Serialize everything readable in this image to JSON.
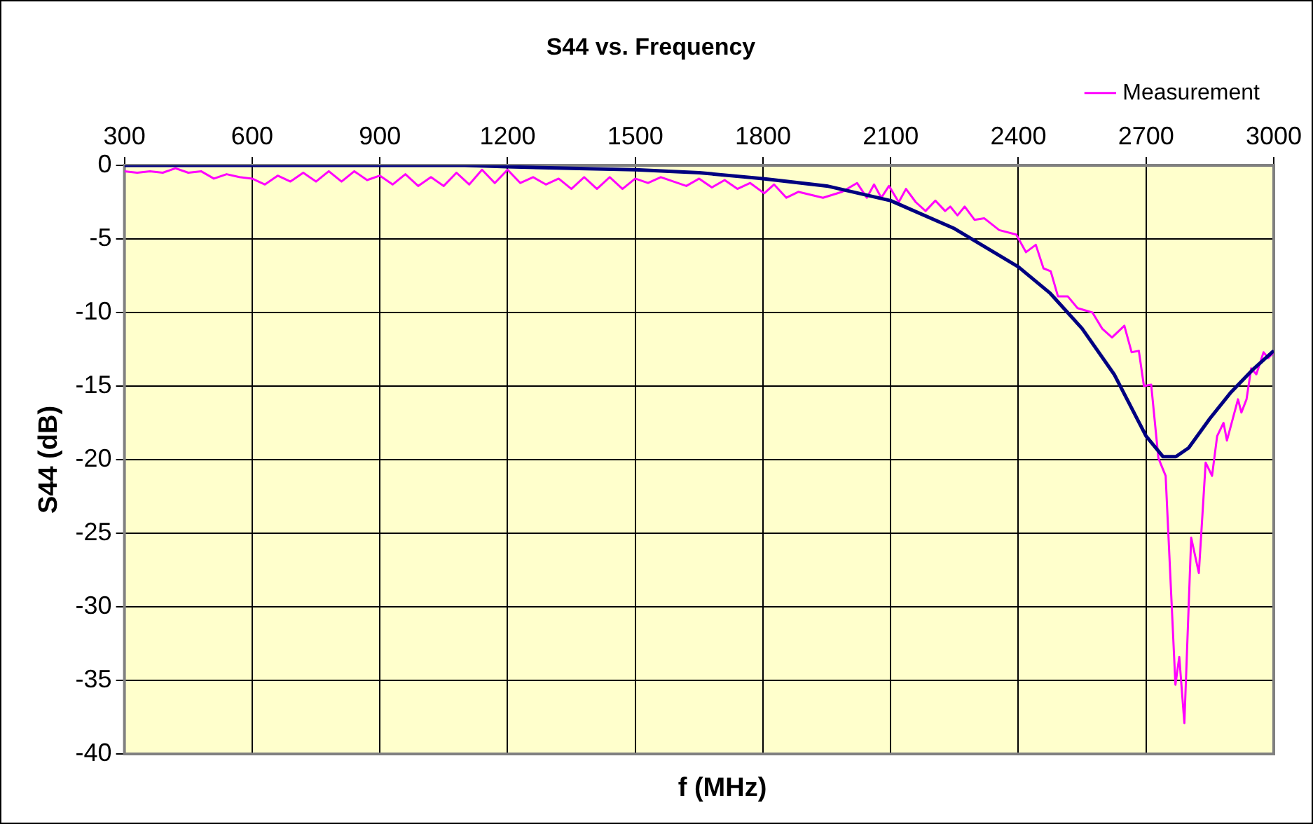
{
  "chart_data": {
    "type": "line",
    "title": "S44 vs. Frequency",
    "xlabel": "f (MHz)",
    "ylabel": "S44 (dB)",
    "xlim": [
      300,
      3000
    ],
    "xticks": [
      300,
      600,
      900,
      1200,
      1500,
      1800,
      2100,
      2400,
      2700,
      3000
    ],
    "ylim": [
      -40,
      0
    ],
    "yticks": [
      -40,
      -35,
      -30,
      -25,
      -20,
      -15,
      -10,
      -5,
      0
    ],
    "grid": true,
    "legend": "top right",
    "marker": "none",
    "line_style": "solid",
    "series": [
      {
        "color": "#000080",
        "x": [
          300,
          600,
          900,
          1100,
          1200,
          1350,
          1500,
          1650,
          1800,
          1950,
          2100,
          2250,
          2400,
          2475,
          2550,
          2625,
          2700,
          2740,
          2770,
          2800,
          2850,
          2900,
          2950,
          3000
        ],
        "values": [
          0,
          0,
          0,
          0,
          -0.1,
          -0.2,
          -0.3,
          -0.5,
          -0.9,
          -1.4,
          -2.4,
          -4.3,
          -6.9,
          -8.7,
          -11.1,
          -14.2,
          -18.4,
          -19.8,
          -19.8,
          -19.2,
          -17.2,
          -15.4,
          -13.9,
          -12.6
        ]
      },
      {
        "name": "Measurement",
        "color": "#ff00ff",
        "x": [
          300,
          330,
          360,
          390,
          420,
          450,
          480,
          510,
          540,
          570,
          600,
          630,
          660,
          690,
          720,
          750,
          780,
          810,
          840,
          870,
          900,
          930,
          960,
          990,
          1020,
          1050,
          1080,
          1110,
          1140,
          1170,
          1200,
          1230,
          1260,
          1290,
          1320,
          1350,
          1380,
          1410,
          1440,
          1470,
          1500,
          1530,
          1560,
          1590,
          1620,
          1650,
          1680,
          1710,
          1740,
          1770,
          1803,
          1826,
          1855,
          1883,
          1941,
          1986,
          2021,
          2044,
          2061,
          2078,
          2096,
          2119,
          2136,
          2159,
          2182,
          2205,
          2228,
          2240,
          2257,
          2274,
          2297,
          2320,
          2355,
          2395,
          2418,
          2441,
          2459,
          2476,
          2493,
          2516,
          2539,
          2574,
          2597,
          2620,
          2649,
          2666,
          2683,
          2695,
          2712,
          2729,
          2746,
          2769,
          2778,
          2790,
          2806,
          2824,
          2840,
          2855,
          2867,
          2882,
          2890,
          2916,
          2924,
          2936,
          2947,
          2959,
          2976,
          2987,
          3000
        ],
        "values": [
          -0.4,
          -0.5,
          -0.4,
          -0.5,
          -0.2,
          -0.5,
          -0.4,
          -0.9,
          -0.6,
          -0.8,
          -0.9,
          -1.3,
          -0.7,
          -1.1,
          -0.5,
          -1.1,
          -0.4,
          -1.1,
          -0.4,
          -1.0,
          -0.7,
          -1.3,
          -0.6,
          -1.4,
          -0.8,
          -1.4,
          -0.5,
          -1.3,
          -0.3,
          -1.2,
          -0.3,
          -1.2,
          -0.8,
          -1.3,
          -0.9,
          -1.6,
          -0.8,
          -1.6,
          -0.8,
          -1.6,
          -0.9,
          -1.2,
          -0.8,
          -1.1,
          -1.4,
          -0.9,
          -1.5,
          -1.0,
          -1.6,
          -1.2,
          -1.9,
          -1.3,
          -2.2,
          -1.8,
          -2.2,
          -1.8,
          -1.2,
          -2.2,
          -1.3,
          -2.2,
          -1.4,
          -2.5,
          -1.6,
          -2.5,
          -3.1,
          -2.4,
          -3.1,
          -2.8,
          -3.4,
          -2.8,
          -3.7,
          -3.6,
          -4.4,
          -4.7,
          -5.9,
          -5.4,
          -7.0,
          -7.2,
          -8.9,
          -8.9,
          -9.7,
          -10.0,
          -11.1,
          -11.7,
          -10.9,
          -12.7,
          -12.6,
          -15.0,
          -14.9,
          -19.9,
          -21.1,
          -35.3,
          -33.4,
          -37.9,
          -25.3,
          -27.7,
          -20.2,
          -21.1,
          -18.4,
          -17.5,
          -18.7,
          -15.9,
          -16.8,
          -15.9,
          -13.8,
          -14.2,
          -12.7,
          -13.1,
          -12.7
        ]
      }
    ]
  }
}
